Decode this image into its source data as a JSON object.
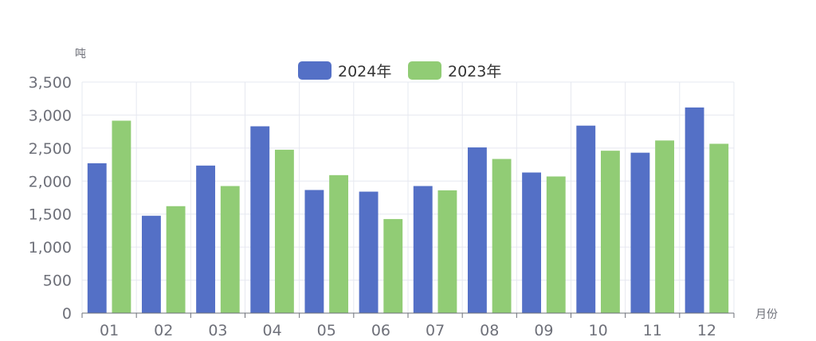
{
  "chart_data": {
    "type": "bar",
    "y_unit": "吨",
    "x_unit": "月份",
    "categories": [
      "01",
      "02",
      "03",
      "04",
      "05",
      "06",
      "07",
      "08",
      "09",
      "10",
      "11",
      "12"
    ],
    "series": [
      {
        "name": "2024年",
        "color": "#5470c6",
        "values": [
          2270,
          1475,
          2235,
          2830,
          1865,
          1840,
          1925,
          2510,
          2130,
          2840,
          2430,
          3115
        ]
      },
      {
        "name": "2023年",
        "color": "#91cc75",
        "values": [
          2915,
          1620,
          1925,
          2475,
          2090,
          1425,
          1860,
          2335,
          2070,
          2460,
          2615,
          2565
        ]
      }
    ],
    "y_ticks": [
      "0",
      "500",
      "1,000",
      "1,500",
      "2,000",
      "2,500",
      "3,000",
      "3,500"
    ],
    "ylim": [
      0,
      3500
    ],
    "grid": true,
    "legend_position": "top-center"
  }
}
